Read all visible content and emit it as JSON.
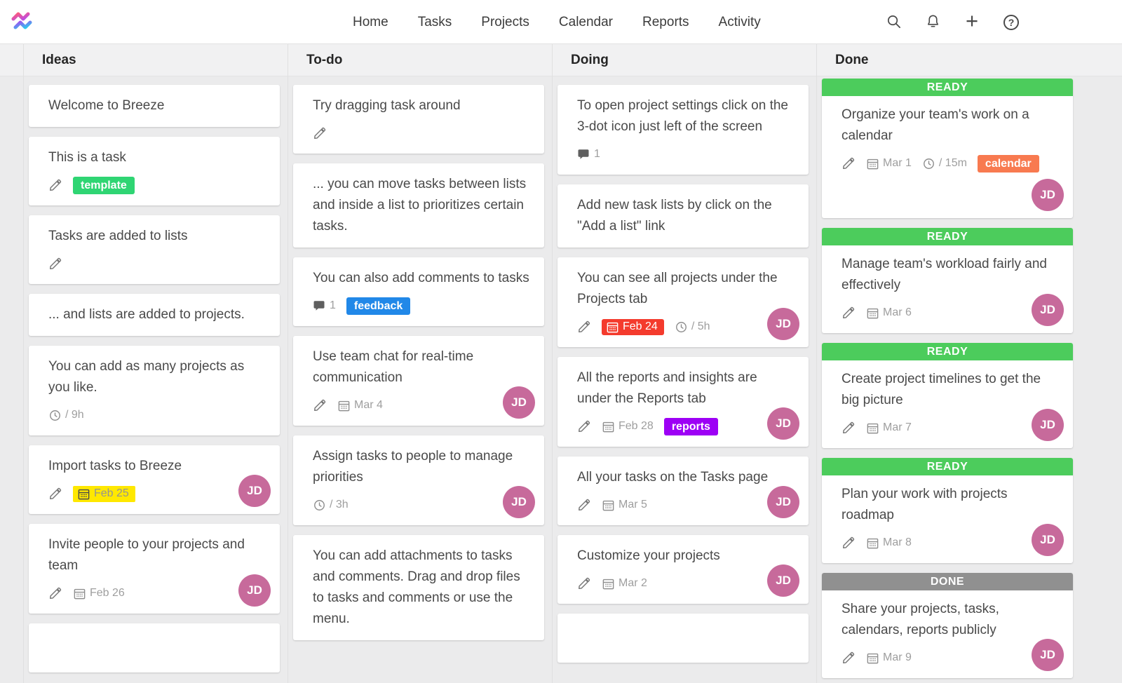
{
  "nav": {
    "items": [
      {
        "label": "Home"
      },
      {
        "label": "Tasks"
      },
      {
        "label": "Projects"
      },
      {
        "label": "Calendar"
      },
      {
        "label": "Reports"
      },
      {
        "label": "Activity"
      }
    ],
    "icon_buttons": [
      {
        "name": "search",
        "icon": "search-icon"
      },
      {
        "name": "notifications",
        "icon": "bell-icon"
      },
      {
        "name": "add",
        "icon": "plus-icon"
      },
      {
        "name": "help",
        "icon": "help-icon"
      }
    ]
  },
  "colors": {
    "board_bg": "#ebebec",
    "avatar_bg": "#c76a9b",
    "banner_ready": "#4ccc5c",
    "banner_done": "#909090",
    "tag_green": "#2fd573",
    "tag_blue": "#2188e8",
    "tag_purple": "#9d00f5",
    "tag_orange": "#f87a50",
    "date_red_bg": "#f43b2d",
    "date_yellow_bg": "#ffe800"
  },
  "avatar_initials": "JD",
  "columns": [
    {
      "title": "Ideas",
      "cards": [
        {
          "title": "Welcome to Breeze"
        },
        {
          "title": "This is a task",
          "pencil": true,
          "tags": [
            {
              "label": "template",
              "color": "#2fd573"
            }
          ]
        },
        {
          "title": "Tasks are added to lists",
          "pencil": true
        },
        {
          "title": "... and lists are added to projects."
        },
        {
          "title": "You can add as many projects as you like.",
          "time": "/ 9h"
        },
        {
          "title": "Import tasks to Breeze",
          "pencil": true,
          "date": {
            "label": "Feb 25",
            "style": "yellow"
          },
          "avatar": "JD"
        },
        {
          "title": "Invite people to your projects and team",
          "pencil": true,
          "date": {
            "label": "Feb 26",
            "style": "plain"
          },
          "avatar": "JD"
        },
        {
          "partial": true
        }
      ]
    },
    {
      "title": "To-do",
      "cards": [
        {
          "title": "Try dragging task around",
          "pencil": true
        },
        {
          "title": "... you can move tasks between lists and inside a list to prioritizes certain tasks."
        },
        {
          "title": "You can also add comments to tasks",
          "comments": "1",
          "tags": [
            {
              "label": "feedback",
              "color": "#2188e8"
            }
          ]
        },
        {
          "title": "Use team chat for real-time communication",
          "pencil": true,
          "date": {
            "label": "Mar 4",
            "style": "plain"
          },
          "avatar": "JD"
        },
        {
          "title": "Assign tasks to people to manage priorities",
          "time": "/ 3h",
          "avatar": "JD"
        },
        {
          "title": "You can add attachments to tasks and comments. Drag and drop files to tasks and comments or use the menu."
        }
      ]
    },
    {
      "title": "Doing",
      "cards": [
        {
          "title": "To open project settings click on the 3-dot icon just left of the screen",
          "comments": "1"
        },
        {
          "title": "Add new task lists by click on the \"Add a list\" link"
        },
        {
          "title": "You can see all projects under the Projects tab",
          "pencil": true,
          "date": {
            "label": "Feb 24",
            "style": "red"
          },
          "time": "/ 5h",
          "avatar": "JD"
        },
        {
          "title": "All the reports and insights are under the Reports tab",
          "pencil": true,
          "date": {
            "label": "Feb 28",
            "style": "plain"
          },
          "tags": [
            {
              "label": "reports",
              "color": "#9d00f5"
            }
          ],
          "avatar": "JD"
        },
        {
          "title": "All your tasks on the Tasks page",
          "pencil": true,
          "date": {
            "label": "Mar 5",
            "style": "plain"
          },
          "avatar": "JD"
        },
        {
          "title": "Customize your projects",
          "pencil": true,
          "date": {
            "label": "Mar 2",
            "style": "plain"
          },
          "avatar": "JD"
        },
        {
          "partial": true
        }
      ]
    },
    {
      "title": "Done",
      "tight_top": true,
      "cards": [
        {
          "banner": {
            "label": "READY",
            "color": "#4ccc5c"
          },
          "title": "Organize your team's work on a calendar",
          "pencil": true,
          "date": {
            "label": "Mar 1",
            "style": "plain"
          },
          "time": "/ 15m",
          "tags": [
            {
              "label": "calendar",
              "color": "#f87a50"
            }
          ],
          "avatar": "JD",
          "avatar_below": true
        },
        {
          "banner": {
            "label": "READY",
            "color": "#4ccc5c"
          },
          "title": "Manage team's workload fairly and effectively",
          "pencil": true,
          "date": {
            "label": "Mar 6",
            "style": "plain"
          },
          "avatar": "JD"
        },
        {
          "banner": {
            "label": "READY",
            "color": "#4ccc5c"
          },
          "title": "Create project timelines to get the big picture",
          "pencil": true,
          "date": {
            "label": "Mar 7",
            "style": "plain"
          },
          "avatar": "JD"
        },
        {
          "banner": {
            "label": "READY",
            "color": "#4ccc5c"
          },
          "title": "Plan your work with projects roadmap",
          "pencil": true,
          "date": {
            "label": "Mar 8",
            "style": "plain"
          },
          "avatar": "JD"
        },
        {
          "banner": {
            "label": "DONE",
            "color": "#909090"
          },
          "title": "Share your projects, tasks, calendars, reports publicly",
          "pencil": true,
          "date": {
            "label": "Mar 9",
            "style": "plain"
          },
          "avatar": "JD"
        }
      ]
    }
  ]
}
